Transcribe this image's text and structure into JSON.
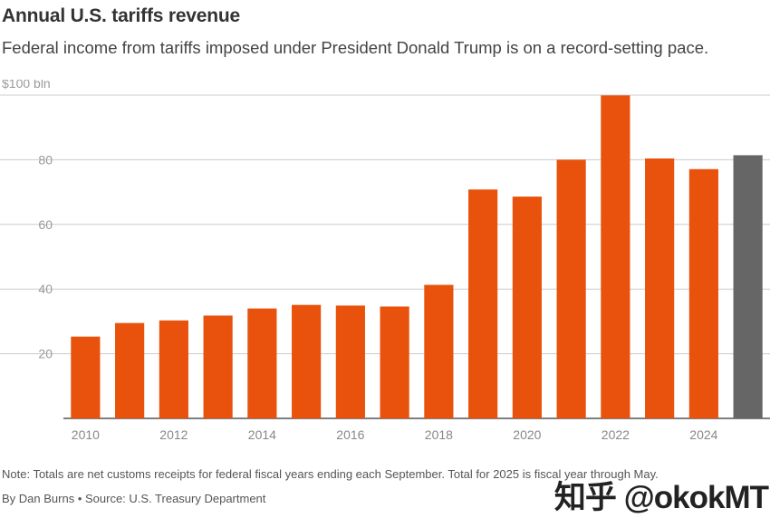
{
  "header": {
    "title": "Annual U.S. tariffs revenue",
    "subtitle": "Federal income from tariffs imposed under President Donald Trump is on a record-setting pace."
  },
  "footer": {
    "note": "Note: Totals are net customs receipts for federal fiscal years ending each September. Total for 2025 is fiscal year through May.",
    "byline": "By Dan Burns • Source: U.S. Treasury Department",
    "watermark": "知乎 @okokMT"
  },
  "colors": {
    "bar": "#E8520C",
    "highlight": "#666666",
    "grid": "#CCCCCC",
    "axis": "#555555"
  },
  "chart_data": {
    "type": "bar",
    "title": "Annual U.S. tariffs revenue",
    "xlabel": "",
    "ylabel": "",
    "ylim": [
      0,
      100
    ],
    "yticks": [
      20,
      40,
      60,
      80,
      100
    ],
    "ytick_labels": [
      "20",
      "40",
      "60",
      "80",
      "$100 bln"
    ],
    "categories": [
      "2010",
      "2011",
      "2012",
      "2013",
      "2014",
      "2015",
      "2016",
      "2017",
      "2018",
      "2019",
      "2020",
      "2021",
      "2022",
      "2023",
      "2024",
      "2025"
    ],
    "xtick_labels": [
      "2010",
      "",
      "2012",
      "",
      "2014",
      "",
      "2016",
      "",
      "2018",
      "",
      "2020",
      "",
      "2022",
      "",
      "2024",
      ""
    ],
    "values": [
      25.3,
      29.5,
      30.3,
      31.8,
      34.0,
      35.1,
      34.9,
      34.6,
      41.3,
      70.8,
      68.6,
      80.0,
      99.9,
      80.4,
      77.1,
      81.4
    ],
    "highlight_category": "2025",
    "grid": true
  }
}
